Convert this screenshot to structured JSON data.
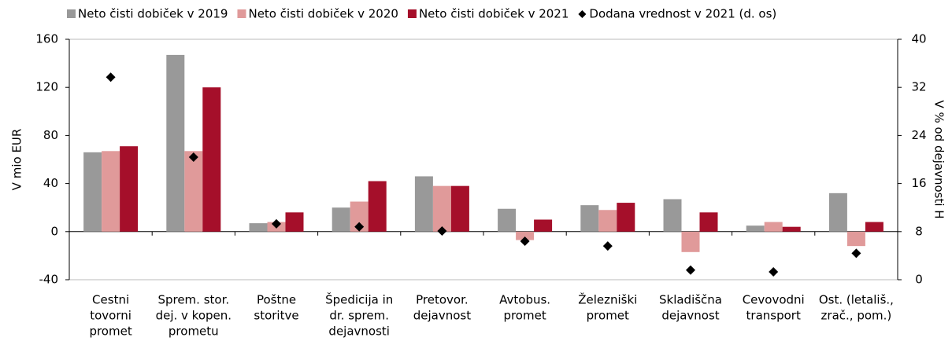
{
  "chart_data": {
    "type": "bar",
    "categories": [
      [
        "Cestni",
        "tovorni",
        "promet"
      ],
      [
        "Sprem. stor.",
        "dej. v kopen.",
        "prometu"
      ],
      [
        "Poštne",
        "storitve"
      ],
      [
        "Špedicija in",
        "dr. sprem.",
        "dejavnosti"
      ],
      [
        "Pretovor.",
        "dejavnost"
      ],
      [
        "Avtobus.",
        "promet"
      ],
      [
        "Železniški",
        "promet"
      ],
      [
        "Skladiščna",
        "dejavnost"
      ],
      [
        "Cevovodni",
        "transport"
      ],
      [
        "Ost. (letališ.,",
        "zrač., pom.)"
      ]
    ],
    "series": [
      {
        "name": "Neto čisti dobiček v 2019",
        "color": "#999999",
        "values": [
          66,
          147,
          7,
          20,
          46,
          19,
          22,
          27,
          5,
          32
        ]
      },
      {
        "name": "Neto čisti dobiček v 2020",
        "color": "#e09a9a",
        "values": [
          67,
          67,
          8,
          25,
          38,
          -7,
          18,
          -17,
          8,
          -12
        ]
      },
      {
        "name": "Neto čisti dobiček v 2021",
        "color": "#a50f2a",
        "values": [
          71,
          120,
          16,
          42,
          38,
          10,
          24,
          16,
          4,
          8
        ]
      },
      {
        "name": "Dodana vrednost v 2021 (d. os)",
        "color": "#000000",
        "type": "scatter",
        "axis": "y2",
        "values": [
          33.7,
          20.4,
          9.3,
          8.8,
          8.1,
          6.4,
          5.6,
          1.6,
          1.3,
          4.4
        ]
      }
    ],
    "ylabel": "V mio EUR",
    "y2label": "V % od dejavnosti H",
    "ylim": [
      -40,
      160
    ],
    "yticks": [
      -40,
      0,
      40,
      80,
      120,
      160
    ],
    "y2lim": [
      0,
      40
    ],
    "y2ticks": [
      0,
      8,
      16,
      24,
      32,
      40
    ],
    "legend": "top"
  }
}
